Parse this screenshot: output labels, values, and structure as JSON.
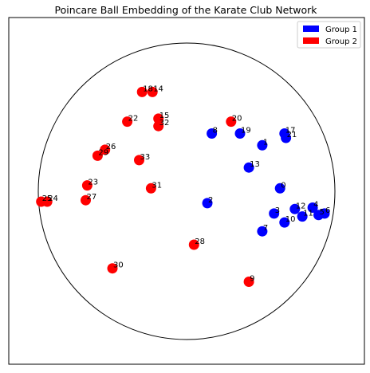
{
  "chart_data": {
    "type": "scatter",
    "title": "Poincare Ball Embedding of the Karate Club Network",
    "xlabel": "",
    "ylabel": "",
    "xlim": [
      -1.2,
      1.2
    ],
    "ylim": [
      -1.2,
      1.2
    ],
    "grid": false,
    "axis_ticks": false,
    "unit_circle": true,
    "legend_position": "top-right",
    "series": [
      {
        "name": "Group 1",
        "color": "#0000ff",
        "points": [
          {
            "label": "0",
            "x": 0.63,
            "y": 0.02
          },
          {
            "label": "1",
            "x": 0.51,
            "y": 0.31
          },
          {
            "label": "2",
            "x": 0.14,
            "y": -0.08
          },
          {
            "label": "3",
            "x": 0.59,
            "y": -0.15
          },
          {
            "label": "4",
            "x": 0.85,
            "y": -0.11
          },
          {
            "label": "5",
            "x": 0.89,
            "y": -0.16
          },
          {
            "label": "6",
            "x": 0.93,
            "y": -0.15
          },
          {
            "label": "7",
            "x": 0.51,
            "y": -0.27
          },
          {
            "label": "8",
            "x": 0.17,
            "y": 0.39
          },
          {
            "label": "10",
            "x": 0.66,
            "y": -0.21
          },
          {
            "label": "11",
            "x": 0.78,
            "y": -0.17
          },
          {
            "label": "12",
            "x": 0.73,
            "y": -0.12
          },
          {
            "label": "13",
            "x": 0.42,
            "y": 0.16
          },
          {
            "label": "17",
            "x": 0.66,
            "y": 0.39
          },
          {
            "label": "19",
            "x": 0.36,
            "y": 0.39
          },
          {
            "label": "21",
            "x": 0.67,
            "y": 0.36
          }
        ]
      },
      {
        "name": "Group 2",
        "color": "#ff0000",
        "points": [
          {
            "label": "9",
            "x": 0.42,
            "y": -0.61
          },
          {
            "label": "14",
            "x": -0.23,
            "y": 0.67
          },
          {
            "label": "15",
            "x": -0.19,
            "y": 0.49
          },
          {
            "label": "18",
            "x": -0.3,
            "y": 0.67
          },
          {
            "label": "20",
            "x": 0.3,
            "y": 0.47
          },
          {
            "label": "22",
            "x": -0.4,
            "y": 0.47
          },
          {
            "label": "23",
            "x": -0.67,
            "y": 0.04
          },
          {
            "label": "24",
            "x": -0.94,
            "y": -0.07
          },
          {
            "label": "25",
            "x": -0.98,
            "y": -0.07
          },
          {
            "label": "26",
            "x": -0.55,
            "y": 0.28
          },
          {
            "label": "27",
            "x": -0.68,
            "y": -0.06
          },
          {
            "label": "28",
            "x": 0.05,
            "y": -0.36
          },
          {
            "label": "29",
            "x": -0.6,
            "y": 0.24
          },
          {
            "label": "30",
            "x": -0.5,
            "y": -0.52
          },
          {
            "label": "31",
            "x": -0.24,
            "y": 0.02
          },
          {
            "label": "32",
            "x": -0.19,
            "y": 0.44
          },
          {
            "label": "33",
            "x": -0.32,
            "y": 0.21
          }
        ]
      }
    ]
  }
}
